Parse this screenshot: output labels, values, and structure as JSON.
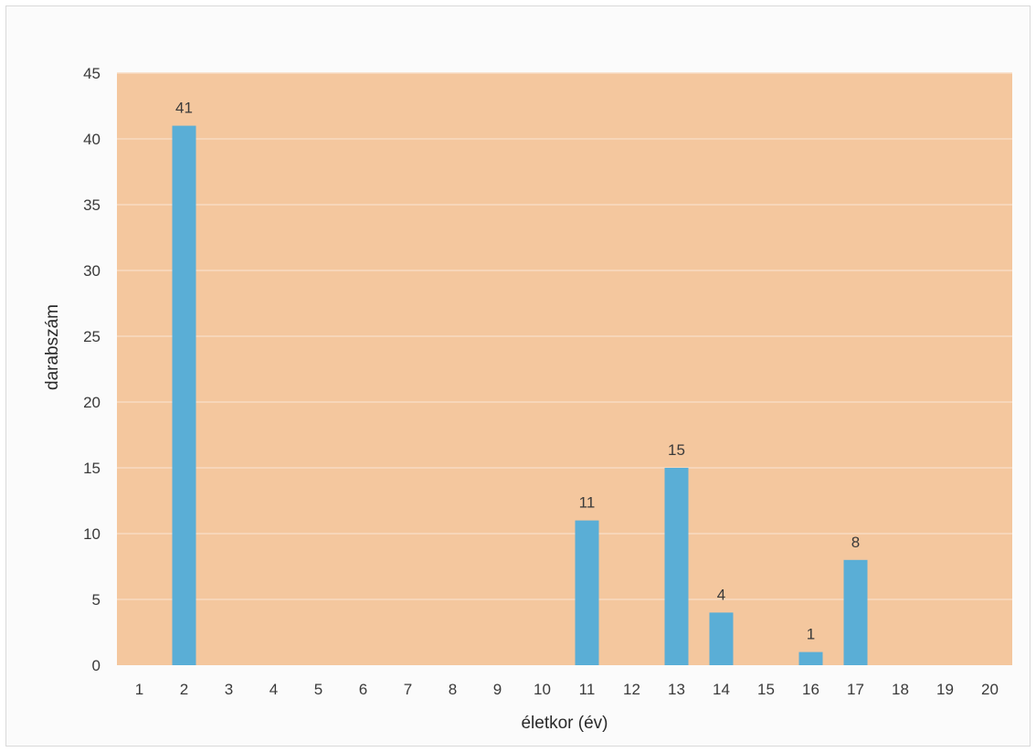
{
  "chart_data": {
    "type": "bar",
    "title": "",
    "xlabel": "életkor (év)",
    "ylabel": "darabszám",
    "categories": [
      "1",
      "2",
      "3",
      "4",
      "5",
      "6",
      "7",
      "8",
      "9",
      "10",
      "11",
      "12",
      "13",
      "14",
      "15",
      "16",
      "17",
      "18",
      "19",
      "20"
    ],
    "values": [
      0,
      41,
      0,
      0,
      0,
      0,
      0,
      0,
      0,
      0,
      11,
      0,
      15,
      4,
      0,
      1,
      8,
      0,
      0,
      0
    ],
    "data_labels": [
      "",
      "41",
      "",
      "",
      "",
      "",
      "",
      "",
      "",
      "",
      "11",
      "",
      "15",
      "4",
      "",
      "1",
      "8",
      "",
      "",
      ""
    ],
    "ylim": [
      0,
      45
    ],
    "yticks": [
      0,
      5,
      10,
      15,
      20,
      25,
      30,
      35,
      40,
      45
    ],
    "grid": true,
    "legend": "none"
  },
  "colors": {
    "plot_background": "#f4c79e",
    "bar": "#5aaed6",
    "gridline": "#f8dcc2"
  }
}
